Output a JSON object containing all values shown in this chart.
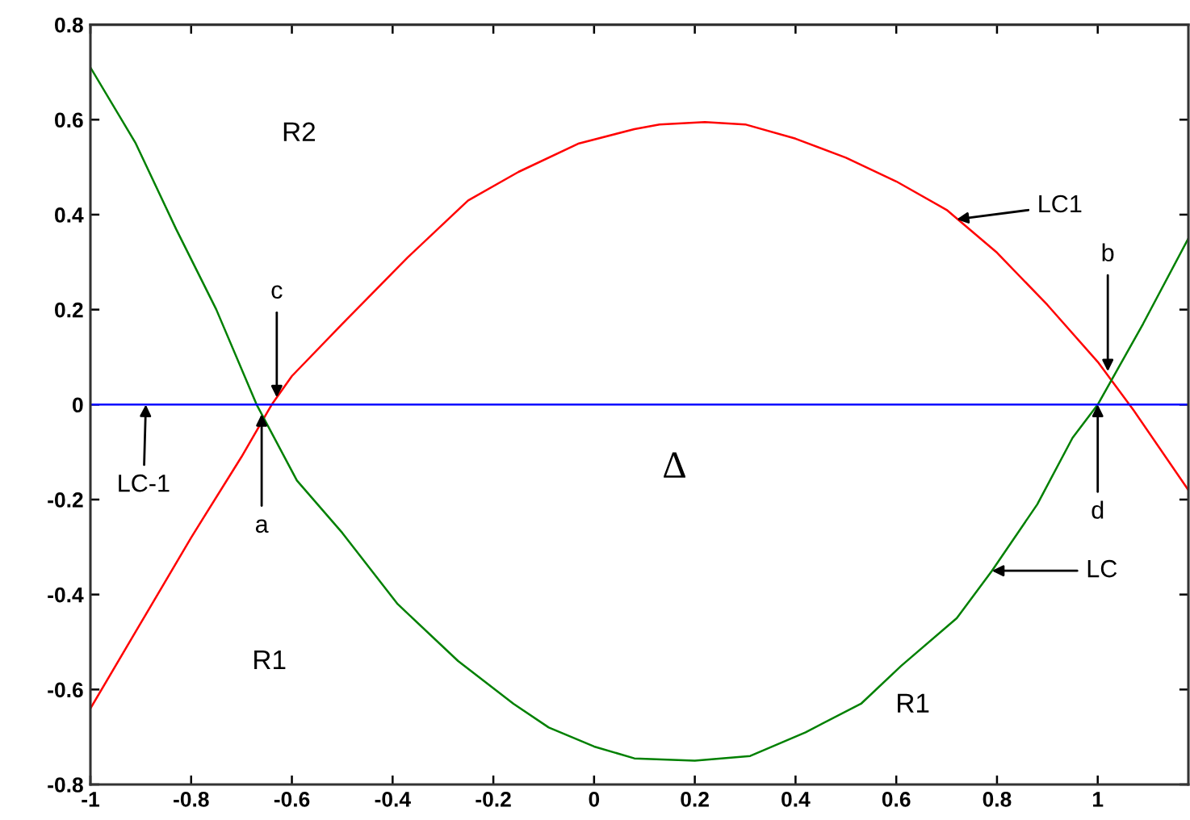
{
  "chart_data": {
    "type": "line",
    "xlim": [
      -1,
      1.18
    ],
    "ylim": [
      -0.8,
      0.8
    ],
    "xticks": [
      -1,
      -0.8,
      -0.6,
      -0.4,
      -0.2,
      0,
      0.2,
      0.4,
      0.6,
      0.8,
      1
    ],
    "yticks": [
      -0.8,
      -0.6,
      -0.4,
      -0.2,
      0,
      0.2,
      0.4,
      0.6,
      0.8
    ],
    "series": [
      {
        "color": "#ff0000",
        "x": [
          -1,
          -0.9,
          -0.8,
          -0.7,
          -0.64,
          -0.6,
          -0.5,
          -0.37,
          -0.25,
          -0.15,
          -0.03,
          0.08,
          0.13,
          0.22,
          0.3,
          0.4,
          0.5,
          0.6,
          0.7,
          0.8,
          0.9,
          1.0,
          1.07,
          1.18
        ],
        "values": [
          -0.64,
          -0.46,
          -0.28,
          -0.11,
          0,
          0.06,
          0.17,
          0.31,
          0.43,
          0.49,
          0.55,
          0.58,
          0.59,
          0.595,
          0.59,
          0.56,
          0.52,
          0.47,
          0.41,
          0.32,
          0.21,
          0.09,
          -0.01,
          -0.18
        ]
      },
      {
        "color": "#008000",
        "x": [
          -1,
          -0.91,
          -0.83,
          -0.75,
          -0.67,
          -0.59,
          -0.5,
          -0.39,
          -0.27,
          -0.16,
          -0.09,
          0.0,
          0.08,
          0.2,
          0.31,
          0.42,
          0.53,
          0.61,
          0.72,
          0.79,
          0.88,
          0.95,
          1.0,
          1.09,
          1.18
        ],
        "values": [
          0.71,
          0.55,
          0.37,
          0.2,
          0,
          -0.16,
          -0.27,
          -0.42,
          -0.54,
          -0.63,
          -0.68,
          -0.72,
          -0.745,
          -0.75,
          -0.74,
          -0.69,
          -0.63,
          -0.55,
          -0.45,
          -0.35,
          -0.21,
          -0.07,
          0,
          0.17,
          0.35
        ]
      },
      {
        "color": "#0000ff",
        "x": [
          -1,
          1.18
        ],
        "values": [
          0,
          0
        ]
      }
    ],
    "annotations": [
      "R2",
      "R1",
      "R1",
      "Δ",
      {
        "text": "c",
        "x": -0.63,
        "y": 0.015
      },
      {
        "text": "a",
        "x": -0.66,
        "y": -0.02
      },
      {
        "text": "b",
        "x": 1.02,
        "y": 0.07
      },
      {
        "text": "d",
        "x": 1.0,
        "y": 0
      },
      {
        "text": "LC1",
        "x": 0.72,
        "y": 0.39
      },
      {
        "text": "LC",
        "x": 0.79,
        "y": -0.35
      },
      {
        "text": "LC-1",
        "x": -0.89,
        "y": 0
      }
    ]
  }
}
